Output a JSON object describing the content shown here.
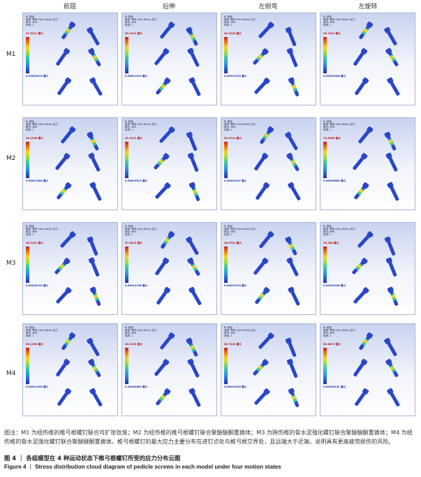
{
  "column_headers": [
    "前屈",
    "后伸",
    "左侧弯",
    "左旋转"
  ],
  "rows": [
    {
      "label": "M1",
      "panels": [
        {
          "max": "37.8311 最大",
          "min": "0.00023474 最小"
        },
        {
          "max": "85.1331 最大",
          "min": "0.00011013 最小"
        },
        {
          "max": "98.3263 最大",
          "min": "0.00012739 最小"
        },
        {
          "max": "56.7294 最大",
          "min": "0.00023008 最小"
        }
      ]
    },
    {
      "label": "M2",
      "panels": [
        {
          "max": "38.2338 最大",
          "min": "0.00011654 最小"
        },
        {
          "max": "91.0119 最大",
          "min": "0.00010513 最小"
        },
        {
          "max": "83.9714 最大",
          "min": "0.00019147 最小"
        },
        {
          "max": "74.6388 最大",
          "min": "0.00035689 最小"
        }
      ]
    },
    {
      "label": "M3",
      "panels": [
        {
          "max": "48.5101 最大",
          "min": "0.00025133 最小"
        },
        {
          "max": "57.4623 最大",
          "min": "0.00012158 最小"
        },
        {
          "max": "46.8781 最大",
          "min": "0.00011513 最小"
        },
        {
          "max": "35.286 最大",
          "min": "0.00023336 最小"
        }
      ]
    },
    {
      "label": "M4",
      "panels": [
        {
          "max": "65.1093 最大",
          "min": "0.00012435 最小"
        },
        {
          "max": "66.2195 最大",
          "min": "0.00049683 最小"
        },
        {
          "max": "88.7049 最大",
          "min": "0.00010516 最小"
        },
        {
          "max": "59.6873 最大",
          "min": "0.00034151 最小"
        }
      ]
    }
  ],
  "panel_header": {
    "line1": "B: 前屈",
    "line2": "类型: 等效 (Von-Mises) 应力",
    "line3": "单位: MPa",
    "line4": "时间: 1"
  },
  "caption": "图注：M1 为经伤椎的椎弓根螺钉联合可扩张钛笼；M2 为经伤椎的椎弓根螺钉联合聚醚醚酮置换体；M3 为跨伤椎的骨水泥强化螺钉联合聚醚醚酮置换体；M4 为经伤椎的骨水泥强化螺钉联合聚醚醚酮置换体。椎弓根螺钉的最大应力主要分布在进钉点处与椎弓根交界处，且远端大于近端，说明具有更高疲劳损伤的风险。",
  "figure_title_cn": "图 4 ｜ 各组模型在 4 种运动状态下椎弓根螺钉所受的应力分布云图",
  "figure_title_en": "Figure 4 ｜ Stress distribution cloud diagram of pedicle screws in each model under four motion states",
  "colors": {
    "max": "#d21a14",
    "min": "#1d2fb4",
    "screw_body": "#2a46c8",
    "hot": "#f4d21c"
  }
}
